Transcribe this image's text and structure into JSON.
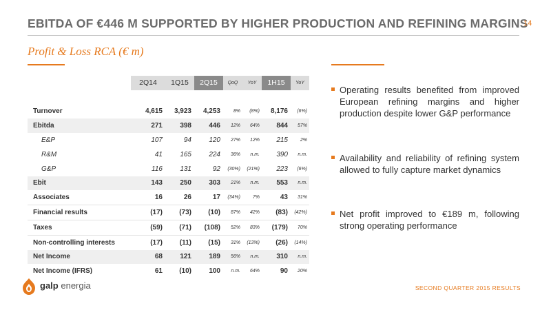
{
  "header": {
    "title": "EBITDA OF €446 M SUPPORTED BY HIGHER PRODUCTION AND REFINING MARGINS",
    "page_number": "14",
    "subtitle": "Profit & Loss RCA (€ m)"
  },
  "table": {
    "columns": [
      "2Q14",
      "1Q15",
      "2Q15",
      "QoQ",
      "YoY",
      "1H15",
      "YoY"
    ],
    "rows": [
      {
        "label": "Turnover",
        "q2_14": "4,615",
        "q1_15": "3,923",
        "q2_15": "4,253",
        "qoq": "8%",
        "yoy": "(8%)",
        "h1_15": "8,176",
        "h1_yoy": "(6%)"
      },
      {
        "label": "Ebitda",
        "q2_14": "271",
        "q1_15": "398",
        "q2_15": "446",
        "qoq": "12%",
        "yoy": "64%",
        "h1_15": "844",
        "h1_yoy": "57%"
      },
      {
        "label": "E&P",
        "q2_14": "107",
        "q1_15": "94",
        "q2_15": "120",
        "qoq": "27%",
        "yoy": "12%",
        "h1_15": "215",
        "h1_yoy": "2%"
      },
      {
        "label": "R&M",
        "q2_14": "41",
        "q1_15": "165",
        "q2_15": "224",
        "qoq": "36%",
        "yoy": "n.m.",
        "h1_15": "390",
        "h1_yoy": "n.m."
      },
      {
        "label": "G&P",
        "q2_14": "116",
        "q1_15": "131",
        "q2_15": "92",
        "qoq": "(30%)",
        "yoy": "(21%)",
        "h1_15": "223",
        "h1_yoy": "(6%)"
      },
      {
        "label": "Ebit",
        "q2_14": "143",
        "q1_15": "250",
        "q2_15": "303",
        "qoq": "21%",
        "yoy": "n.m.",
        "h1_15": "553",
        "h1_yoy": "n.m."
      },
      {
        "label": "Associates",
        "q2_14": "16",
        "q1_15": "26",
        "q2_15": "17",
        "qoq": "(34%)",
        "yoy": "7%",
        "h1_15": "43",
        "h1_yoy": "31%"
      },
      {
        "label": "Financial results",
        "q2_14": "(17)",
        "q1_15": "(73)",
        "q2_15": "(10)",
        "qoq": "87%",
        "yoy": "42%",
        "h1_15": "(83)",
        "h1_yoy": "(42%)"
      },
      {
        "label": "Taxes",
        "q2_14": "(59)",
        "q1_15": "(71)",
        "q2_15": "(108)",
        "qoq": "52%",
        "yoy": "83%",
        "h1_15": "(179)",
        "h1_yoy": "70%"
      },
      {
        "label": "Non-controlling interests",
        "q2_14": "(17)",
        "q1_15": "(11)",
        "q2_15": "(15)",
        "qoq": "31%",
        "yoy": "(13%)",
        "h1_15": "(26)",
        "h1_yoy": "(14%)"
      },
      {
        "label": "Net Income",
        "q2_14": "68",
        "q1_15": "121",
        "q2_15": "189",
        "qoq": "56%",
        "yoy": "n.m.",
        "h1_15": "310",
        "h1_yoy": "n.m."
      },
      {
        "label": "Net Income (IFRS)",
        "q2_14": "61",
        "q1_15": "(10)",
        "q2_15": "100",
        "qoq": "n.m.",
        "yoy": "64%",
        "h1_15": "90",
        "h1_yoy": "20%"
      }
    ]
  },
  "bullets": [
    "Operating results benefited from improved European refining margins and higher production despite lower G&P performance",
    "Availability and reliability of refining system allowed to fully capture market dynamics",
    "Net profit improved to €189 m, following strong operating performance"
  ],
  "footer": {
    "logo_bold": "galp",
    "logo_light": "energia",
    "text": "SECOND QUARTER 2015 RESULTS"
  },
  "colors": {
    "accent": "#e67a1e",
    "title_gray": "#6b6b6b",
    "header_dark": "#8a8a8a",
    "header_light": "#dcdcdc",
    "row_shade": "#efefef"
  }
}
